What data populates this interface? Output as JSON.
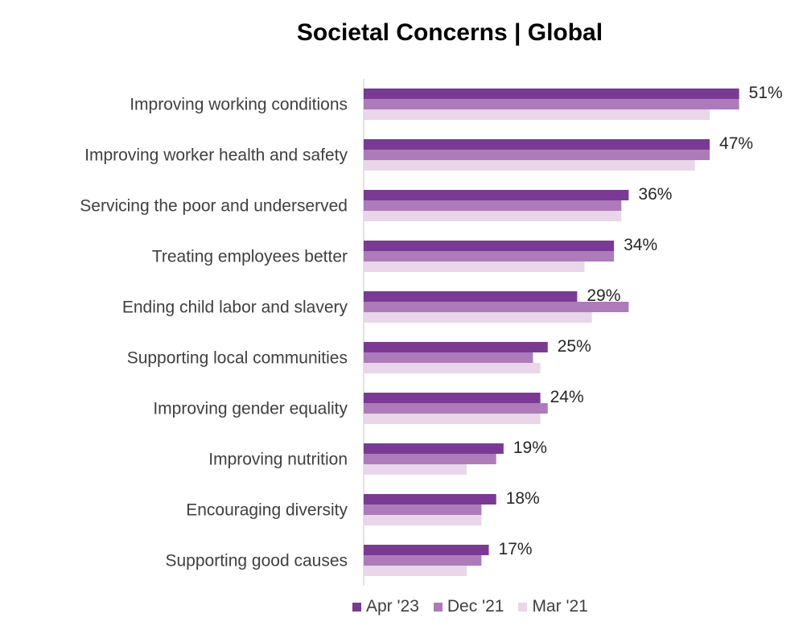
{
  "chart_data": {
    "type": "bar",
    "orientation": "horizontal",
    "title": "Societal Concerns | Global",
    "categories": [
      "Improving working conditions",
      "Improving worker health and safety",
      "Servicing the poor and underserved",
      "Treating employees better",
      "Ending child labor and slavery",
      "Supporting local communities",
      "Improving gender equality",
      "Improving nutrition",
      "Encouraging diversity",
      "Supporting good causes"
    ],
    "series": [
      {
        "name": "Apr '23",
        "color": "#7a3a93",
        "values": [
          51,
          47,
          36,
          34,
          29,
          25,
          24,
          19,
          18,
          17
        ],
        "data_labels": [
          "51%",
          "47%",
          "36%",
          "34%",
          "29%",
          "25%",
          "24%",
          "19%",
          "18%",
          "17%"
        ]
      },
      {
        "name": "Dec '21",
        "color": "#ad7bba",
        "values": [
          51,
          47,
          35,
          34,
          36,
          23,
          25,
          18,
          16,
          16
        ]
      },
      {
        "name": "Mar '21",
        "color": "#e9d6e9",
        "values": [
          47,
          45,
          35,
          30,
          31,
          24,
          24,
          14,
          16,
          14
        ]
      }
    ],
    "xlim": [
      0,
      55
    ],
    "xlabel": "",
    "ylabel": "",
    "grid": false,
    "legend_position": "bottom"
  }
}
